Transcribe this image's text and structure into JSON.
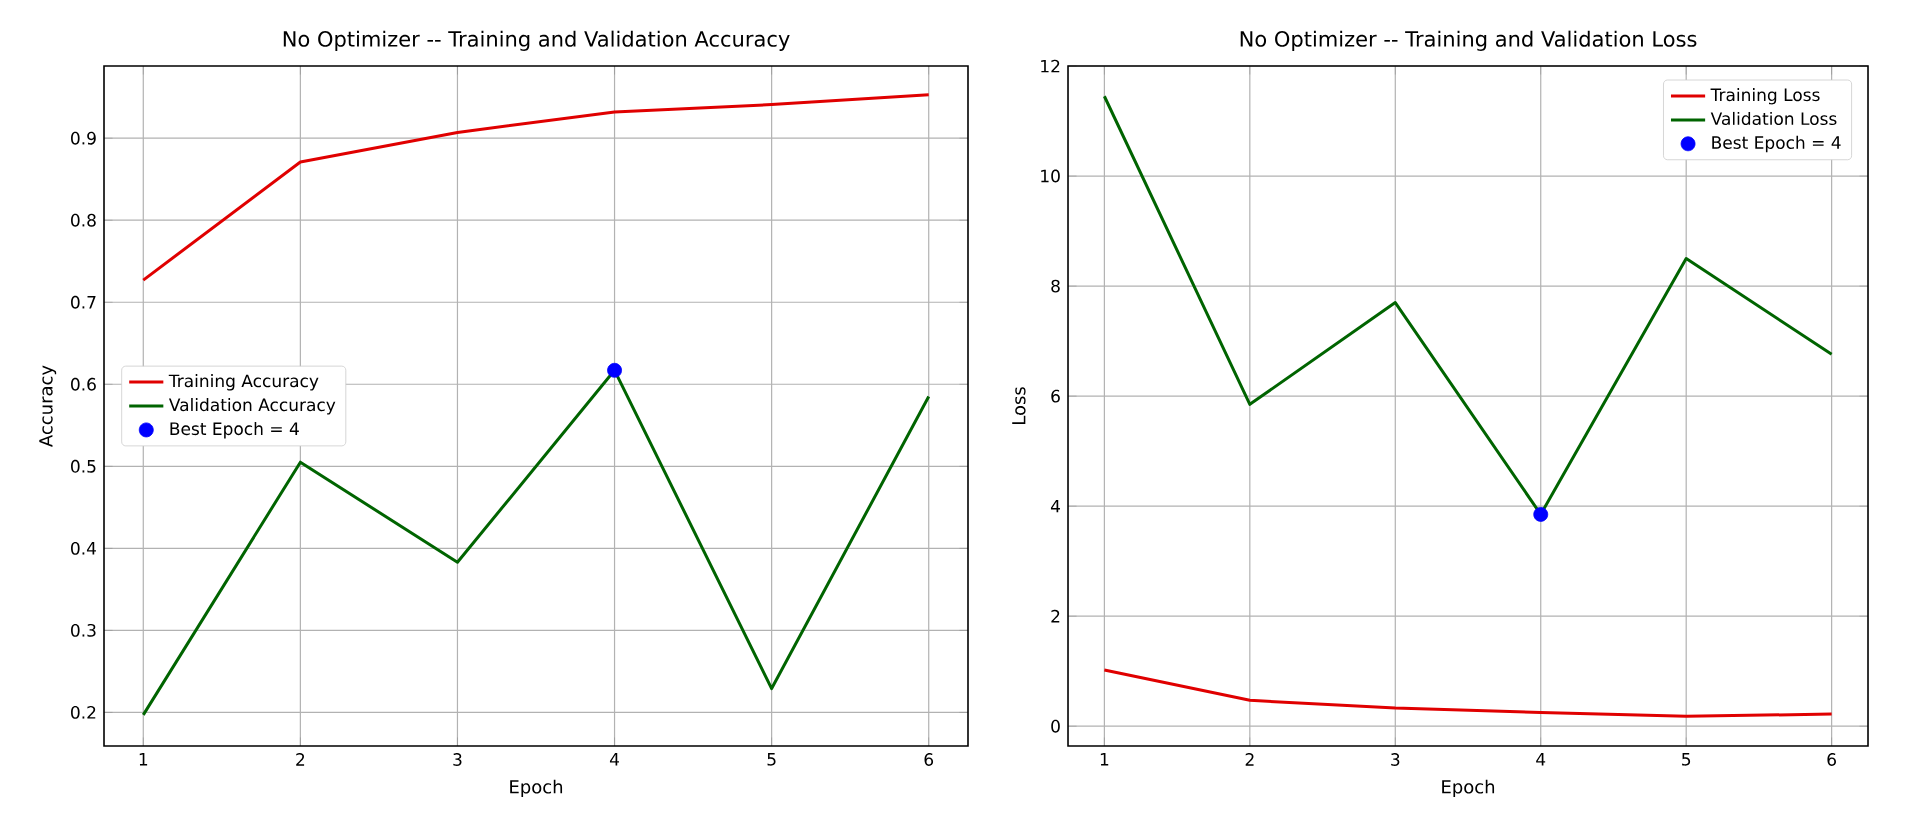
{
  "chart_data": [
    {
      "type": "line",
      "title": "No Optimizer -- Training and Validation Accuracy",
      "xlabel": "Epoch",
      "ylabel": "Accuracy",
      "x": [
        1,
        2,
        3,
        4,
        5,
        6
      ],
      "xlim": [
        0.75,
        6.25
      ],
      "xticks": [
        1,
        2,
        3,
        4,
        5,
        6
      ],
      "ylim": [
        0.159,
        0.988
      ],
      "yticks": [
        0.2,
        0.3,
        0.4,
        0.5,
        0.6,
        0.7,
        0.8,
        0.9
      ],
      "grid": true,
      "legend": "left",
      "series": [
        {
          "name": "Training Accuracy",
          "color": "#e00000",
          "values": [
            0.727,
            0.871,
            0.907,
            0.932,
            0.941,
            0.953
          ]
        },
        {
          "name": "Validation Accuracy",
          "color": "#006400",
          "values": [
            0.197,
            0.505,
            0.383,
            0.617,
            0.229,
            0.585
          ]
        },
        {
          "name": "Best Epoch = 4",
          "type": "scatter",
          "color": "#0000ff",
          "x": [
            4
          ],
          "values": [
            0.617
          ]
        }
      ]
    },
    {
      "type": "line",
      "title": "No Optimizer -- Training and Validation Loss",
      "xlabel": "Epoch",
      "ylabel": "Loss",
      "x": [
        1,
        2,
        3,
        4,
        5,
        6
      ],
      "xlim": [
        0.75,
        6.25
      ],
      "xticks": [
        1,
        2,
        3,
        4,
        5,
        6
      ],
      "ylim": [
        -0.36,
        12
      ],
      "yticks": [
        0,
        2,
        4,
        6,
        8,
        10,
        12
      ],
      "grid": true,
      "legend": "top right",
      "series": [
        {
          "name": "Training Loss",
          "color": "#e00000",
          "values": [
            1.02,
            0.47,
            0.33,
            0.25,
            0.18,
            0.22
          ]
        },
        {
          "name": "Validation Loss",
          "color": "#006400",
          "values": [
            11.45,
            5.85,
            7.7,
            3.85,
            8.5,
            6.76
          ]
        },
        {
          "name": "Best Epoch = 4",
          "type": "scatter",
          "color": "#0000ff",
          "x": [
            4
          ],
          "values": [
            3.85
          ]
        }
      ]
    }
  ]
}
